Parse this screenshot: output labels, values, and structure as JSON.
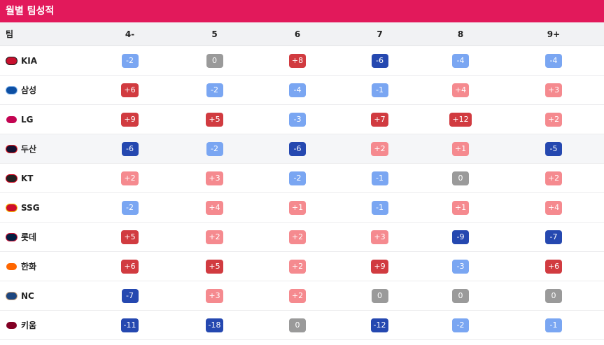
{
  "title": "월별 팀성적",
  "columns": [
    "팀",
    "4-",
    "5",
    "6",
    "7",
    "8",
    "9+"
  ],
  "colors": {
    "strong_pos": "#d13b40",
    "light_pos": "#f58a8f",
    "strong_neg": "#2548b0",
    "light_neg": "#7aa6f2",
    "zero": "#9a9a9a",
    "header_bar": "#e2195b"
  },
  "rows": [
    {
      "team": "KIA",
      "logo": {
        "icon": "kia-tigers-logo",
        "bg": "#c8102e",
        "ring": "#1a1a1a"
      },
      "values": [
        {
          "text": "-2",
          "level": "light_neg"
        },
        {
          "text": "0",
          "level": "zero"
        },
        {
          "text": "+8",
          "level": "strong_pos"
        },
        {
          "text": "-6",
          "level": "strong_neg"
        },
        {
          "text": "-4",
          "level": "light_neg"
        },
        {
          "text": "-4",
          "level": "light_neg"
        }
      ]
    },
    {
      "team": "삼성",
      "logo": {
        "icon": "samsung-lions-logo",
        "bg": "#0d4fa3",
        "ring": "#7fb0e8"
      },
      "values": [
        {
          "text": "+6",
          "level": "strong_pos"
        },
        {
          "text": "-2",
          "level": "light_neg"
        },
        {
          "text": "-4",
          "level": "light_neg"
        },
        {
          "text": "-1",
          "level": "light_neg"
        },
        {
          "text": "+4",
          "level": "light_pos"
        },
        {
          "text": "+3",
          "level": "light_pos"
        }
      ]
    },
    {
      "team": "LG",
      "logo": {
        "icon": "lg-twins-logo",
        "bg": "#c30452",
        "ring": "#ffffff"
      },
      "values": [
        {
          "text": "+9",
          "level": "strong_pos"
        },
        {
          "text": "+5",
          "level": "strong_pos"
        },
        {
          "text": "-3",
          "level": "light_neg"
        },
        {
          "text": "+7",
          "level": "strong_pos"
        },
        {
          "text": "+12",
          "level": "strong_pos"
        },
        {
          "text": "+2",
          "level": "light_pos"
        }
      ]
    },
    {
      "team": "두산",
      "highlight": true,
      "logo": {
        "icon": "doosan-bears-logo",
        "bg": "#131230",
        "ring": "#ed1c24"
      },
      "values": [
        {
          "text": "-6",
          "level": "strong_neg"
        },
        {
          "text": "-2",
          "level": "light_neg"
        },
        {
          "text": "-6",
          "level": "strong_neg"
        },
        {
          "text": "+2",
          "level": "light_pos"
        },
        {
          "text": "+1",
          "level": "light_pos"
        },
        {
          "text": "-5",
          "level": "strong_neg"
        }
      ]
    },
    {
      "team": "KT",
      "logo": {
        "icon": "kt-wiz-logo",
        "bg": "#222222",
        "ring": "#d6001c"
      },
      "values": [
        {
          "text": "+2",
          "level": "light_pos"
        },
        {
          "text": "+3",
          "level": "light_pos"
        },
        {
          "text": "-2",
          "level": "light_neg"
        },
        {
          "text": "-1",
          "level": "light_neg"
        },
        {
          "text": "0",
          "level": "zero"
        },
        {
          "text": "+2",
          "level": "light_pos"
        }
      ]
    },
    {
      "team": "SSG",
      "logo": {
        "icon": "ssg-landers-logo",
        "bg": "#ce0e2d",
        "ring": "#f5c400"
      },
      "values": [
        {
          "text": "-2",
          "level": "light_neg"
        },
        {
          "text": "+4",
          "level": "light_pos"
        },
        {
          "text": "+1",
          "level": "light_pos"
        },
        {
          "text": "-1",
          "level": "light_neg"
        },
        {
          "text": "+1",
          "level": "light_pos"
        },
        {
          "text": "+4",
          "level": "light_pos"
        }
      ]
    },
    {
      "team": "롯데",
      "logo": {
        "icon": "lotte-giants-logo",
        "bg": "#041e42",
        "ring": "#d00f31"
      },
      "values": [
        {
          "text": "+5",
          "level": "strong_pos"
        },
        {
          "text": "+2",
          "level": "light_pos"
        },
        {
          "text": "+2",
          "level": "light_pos"
        },
        {
          "text": "+3",
          "level": "light_pos"
        },
        {
          "text": "-9",
          "level": "strong_neg"
        },
        {
          "text": "-7",
          "level": "strong_neg"
        }
      ]
    },
    {
      "team": "한화",
      "logo": {
        "icon": "hanwha-eagles-logo",
        "bg": "#ff6600",
        "ring": "#ffffff"
      },
      "values": [
        {
          "text": "+6",
          "level": "strong_pos"
        },
        {
          "text": "+5",
          "level": "strong_pos"
        },
        {
          "text": "+2",
          "level": "light_pos"
        },
        {
          "text": "+9",
          "level": "strong_pos"
        },
        {
          "text": "-3",
          "level": "light_neg"
        },
        {
          "text": "+6",
          "level": "strong_pos"
        }
      ]
    },
    {
      "team": "NC",
      "logo": {
        "icon": "nc-dinos-logo",
        "bg": "#1d467f",
        "ring": "#c7a079"
      },
      "values": [
        {
          "text": "-7",
          "level": "strong_neg"
        },
        {
          "text": "+3",
          "level": "light_pos"
        },
        {
          "text": "+2",
          "level": "light_pos"
        },
        {
          "text": "0",
          "level": "zero"
        },
        {
          "text": "0",
          "level": "zero"
        },
        {
          "text": "0",
          "level": "zero"
        }
      ]
    },
    {
      "team": "키움",
      "logo": {
        "icon": "kiwoom-heroes-logo",
        "bg": "#820024",
        "ring": "#ffffff"
      },
      "values": [
        {
          "text": "-11",
          "level": "strong_neg"
        },
        {
          "text": "-18",
          "level": "strong_neg"
        },
        {
          "text": "0",
          "level": "zero"
        },
        {
          "text": "-12",
          "level": "strong_neg"
        },
        {
          "text": "-2",
          "level": "light_neg"
        },
        {
          "text": "-1",
          "level": "light_neg"
        }
      ]
    }
  ]
}
